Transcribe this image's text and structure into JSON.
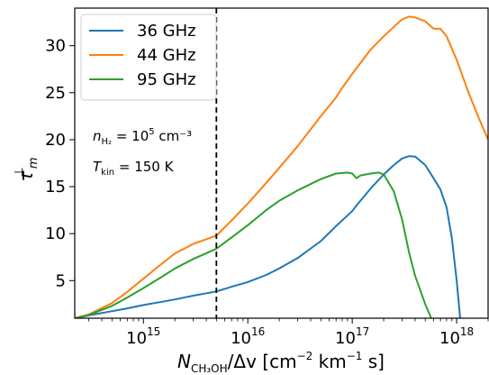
{
  "chart_data": {
    "type": "line",
    "xscale": "log",
    "xlim": [
      220000000000000.0,
      2e+18
    ],
    "ylim": [
      1,
      34
    ],
    "xticks": [
      {
        "value": 1000000000000000.0,
        "base": "10",
        "exp": "15"
      },
      {
        "value": 1e+16,
        "base": "10",
        "exp": "16"
      },
      {
        "value": 1e+17,
        "base": "10",
        "exp": "17"
      },
      {
        "value": 1e+18,
        "base": "10",
        "exp": "18"
      }
    ],
    "yticks": [
      {
        "value": 5,
        "label": "5"
      },
      {
        "value": 10,
        "label": "10"
      },
      {
        "value": 15,
        "label": "15"
      },
      {
        "value": 20,
        "label": "20"
      },
      {
        "value": 25,
        "label": "25"
      },
      {
        "value": 30,
        "label": "30"
      }
    ],
    "xlabel": {
      "main": "N",
      "sub": "CH₃OH",
      "mid": "/Δv [cm",
      "sup1": "−2",
      "mid2": " km",
      "sup2": "−1",
      "end": " s]"
    },
    "ylabel": {
      "main": "τ",
      "sub": "m",
      "sup": "⊥"
    },
    "vline": {
      "x": 5000000000000000.0,
      "style": "dashed",
      "color": "#000000"
    },
    "annotations": {
      "density": {
        "sym": "n",
        "sub": "H₂",
        "eq": " = 10",
        "sup": "5",
        "unit": " cm⁻³"
      },
      "temperature": {
        "sym": "T",
        "sub": "kin",
        "eq": " = 150 K"
      }
    },
    "legend_position": "top-left",
    "series": [
      {
        "name": "36 GHz",
        "color": "#1f77b4",
        "points": [
          [
            220000000000000.0,
            1.0
          ],
          [
            300000000000000.0,
            1.3
          ],
          [
            500000000000000.0,
            1.75
          ],
          [
            700000000000000.0,
            2.05
          ],
          [
            1000000000000000.0,
            2.4
          ],
          [
            1500000000000000.0,
            2.75
          ],
          [
            2000000000000000.0,
            3.0
          ],
          [
            3000000000000000.0,
            3.4
          ],
          [
            5000000000000000.0,
            3.85
          ],
          [
            7000000000000000.0,
            4.35
          ],
          [
            1e+16,
            4.85
          ],
          [
            1.5e+16,
            5.6
          ],
          [
            2e+16,
            6.3
          ],
          [
            3e+16,
            7.4
          ],
          [
            5e+16,
            9.2
          ],
          [
            7e+16,
            10.8
          ],
          [
            1e+17,
            12.4
          ],
          [
            1.1e+17,
            13.0
          ],
          [
            1.5e+17,
            14.8
          ],
          [
            2e+17,
            16.3
          ],
          [
            2.5e+17,
            17.3
          ],
          [
            3e+17,
            18.0
          ],
          [
            3.5e+17,
            18.25
          ],
          [
            4e+17,
            18.2
          ],
          [
            5e+17,
            17.3
          ],
          [
            6e+17,
            15.9
          ],
          [
            7e+17,
            14.7
          ],
          [
            8e+17,
            12.8
          ],
          [
            9e+17,
            9.5
          ],
          [
            1e+18,
            5.0
          ],
          [
            1.08e+18,
            1.0
          ]
        ]
      },
      {
        "name": "44 GHz",
        "color": "#ff7f0e",
        "points": [
          [
            220000000000000.0,
            1.0
          ],
          [
            300000000000000.0,
            1.4
          ],
          [
            500000000000000.0,
            2.6
          ],
          [
            700000000000000.0,
            3.8
          ],
          [
            1000000000000000.0,
            5.2
          ],
          [
            1500000000000000.0,
            6.8
          ],
          [
            2000000000000000.0,
            7.9
          ],
          [
            3000000000000000.0,
            8.9
          ],
          [
            5000000000000000.0,
            9.8
          ],
          [
            7000000000000000.0,
            11.4
          ],
          [
            1e+16,
            13.2
          ],
          [
            1.5e+16,
            15.4
          ],
          [
            2e+16,
            17.0
          ],
          [
            3e+16,
            19.3
          ],
          [
            5e+16,
            22.5
          ],
          [
            7e+16,
            24.5
          ],
          [
            8e+16,
            25.5
          ],
          [
            1e+17,
            27.0
          ],
          [
            1.5e+17,
            29.6
          ],
          [
            2e+17,
            31.0
          ],
          [
            2.5e+17,
            32.0
          ],
          [
            3e+17,
            32.8
          ],
          [
            3.5e+17,
            33.1
          ],
          [
            4e+17,
            33.0
          ],
          [
            5e+17,
            32.6
          ],
          [
            6e+17,
            31.8
          ],
          [
            7e+17,
            31.8
          ],
          [
            8e+17,
            31.0
          ],
          [
            1e+18,
            28.5
          ],
          [
            1.3e+18,
            25.0
          ],
          [
            1.6e+18,
            22.5
          ],
          [
            2e+18,
            20.0
          ]
        ]
      },
      {
        "name": "95 GHz",
        "color": "#2ca02c",
        "points": [
          [
            220000000000000.0,
            1.0
          ],
          [
            300000000000000.0,
            1.35
          ],
          [
            500000000000000.0,
            2.3
          ],
          [
            700000000000000.0,
            3.2
          ],
          [
            1000000000000000.0,
            4.2
          ],
          [
            1500000000000000.0,
            5.4
          ],
          [
            2000000000000000.0,
            6.3
          ],
          [
            3000000000000000.0,
            7.3
          ],
          [
            5000000000000000.0,
            8.4
          ],
          [
            7000000000000000.0,
            9.6
          ],
          [
            1e+16,
            10.9
          ],
          [
            1.5e+16,
            12.5
          ],
          [
            2e+16,
            13.5
          ],
          [
            3e+16,
            14.6
          ],
          [
            5e+16,
            15.8
          ],
          [
            7e+16,
            16.4
          ],
          [
            9e+16,
            16.5
          ],
          [
            1e+17,
            16.4
          ],
          [
            1.1e+17,
            15.9
          ],
          [
            1.2e+17,
            16.2
          ],
          [
            1.5e+17,
            16.4
          ],
          [
            1.8e+17,
            16.5
          ],
          [
            2e+17,
            16.3
          ],
          [
            2.5e+17,
            14.5
          ],
          [
            3e+17,
            11.5
          ],
          [
            3.5e+17,
            8.0
          ],
          [
            4e+17,
            5.5
          ],
          [
            5e+17,
            2.5
          ],
          [
            5.7e+17,
            1.0
          ]
        ]
      }
    ]
  }
}
